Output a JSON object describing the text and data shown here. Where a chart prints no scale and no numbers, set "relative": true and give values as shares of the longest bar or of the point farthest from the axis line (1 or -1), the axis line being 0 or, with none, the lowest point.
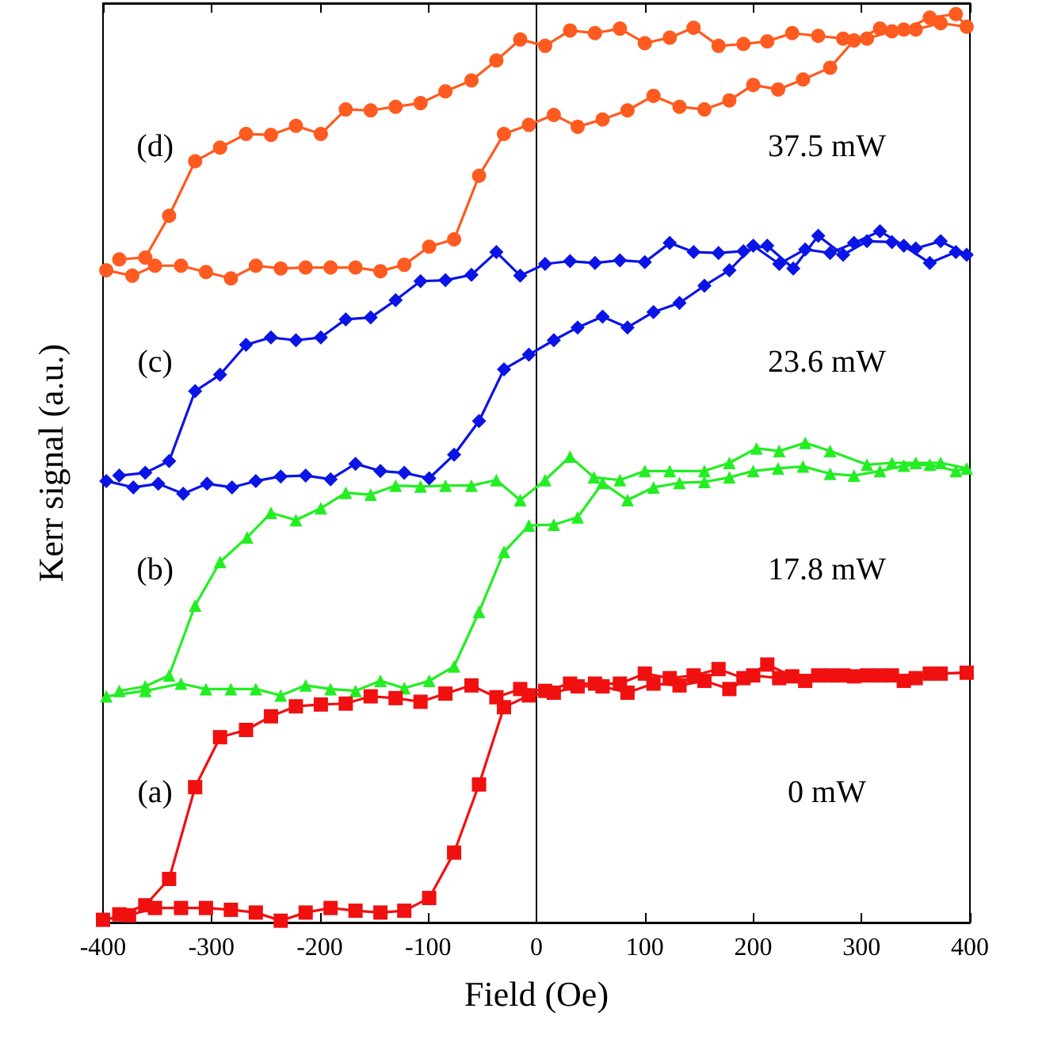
{
  "chart_data": {
    "type": "line",
    "relative": true,
    "xlabel": "Field (Oe)",
    "ylabel": "Kerr signal (a.u.)",
    "xlim": [
      -400,
      400
    ],
    "xticks": [
      -400,
      -300,
      -200,
      -100,
      0,
      100,
      200,
      300,
      400
    ],
    "grid": false,
    "line_style": "solid",
    "ref_lines": [
      {
        "axis": "x",
        "value": 0,
        "color": "#000000"
      }
    ],
    "annotations": [
      "(d)",
      "37.5 mW",
      "(c)",
      "23.6 mW",
      "(b)",
      "17.8 mW",
      "(a)",
      "0 mW"
    ],
    "series": [
      {
        "color": "#ff5a1f",
        "marker": "circle",
        "x": [
          -397,
          -373,
          -352,
          -328,
          -305,
          -282,
          -259,
          -236,
          -213,
          -190,
          -167,
          -144,
          -122,
          -99,
          -76,
          -53,
          -30,
          -7,
          16,
          38,
          61,
          84,
          108,
          132,
          155,
          178,
          200,
          223,
          246,
          271,
          293,
          317,
          339,
          363,
          387,
          397,
          373,
          350,
          328,
          305,
          283,
          260,
          236,
          213,
          191,
          168,
          145,
          123,
          100,
          77,
          54,
          31,
          8,
          -15,
          -37,
          -60,
          -84,
          -107,
          -130,
          -153,
          -176,
          -199,
          -222,
          -245,
          -268,
          -292,
          -315,
          -339,
          -361,
          -385
        ],
        "values": [
          0.718,
          0.712,
          0.723,
          0.723,
          0.716,
          0.709,
          0.723,
          0.72,
          0.721,
          0.721,
          0.721,
          0.717,
          0.724,
          0.744,
          0.752,
          0.822,
          0.868,
          0.878,
          0.889,
          0.876,
          0.884,
          0.894,
          0.91,
          0.898,
          0.895,
          0.905,
          0.922,
          0.917,
          0.928,
          0.941,
          0.971,
          0.984,
          0.983,
          0.996,
          1.0,
          0.986,
          0.99,
          0.983,
          0.981,
          0.973,
          0.973,
          0.976,
          0.979,
          0.97,
          0.967,
          0.965,
          0.985,
          0.974,
          0.968,
          0.984,
          0.979,
          0.982,
          0.965,
          0.972,
          0.949,
          0.927,
          0.915,
          0.902,
          0.898,
          0.894,
          0.895,
          0.868,
          0.877,
          0.867,
          0.868,
          0.853,
          0.838,
          0.778,
          0.732,
          0.73
        ]
      },
      {
        "color": "#0a14e6",
        "marker": "diamond",
        "x": [
          -397,
          -372,
          -349,
          -326,
          -304,
          -281,
          -259,
          -236,
          -213,
          -190,
          -167,
          -144,
          -122,
          -99,
          -76,
          -53,
          -30,
          -7,
          16,
          38,
          61,
          84,
          108,
          132,
          155,
          178,
          200,
          224,
          248,
          271,
          293,
          317,
          339,
          363,
          387,
          397,
          373,
          350,
          328,
          305,
          283,
          260,
          237,
          213,
          191,
          168,
          145,
          123,
          100,
          77,
          54,
          31,
          8,
          -15,
          -37,
          -60,
          -84,
          -107,
          -130,
          -153,
          -176,
          -199,
          -222,
          -245,
          -268,
          -292,
          -315,
          -339,
          -361,
          -385
        ],
        "values": [
          0.486,
          0.479,
          0.483,
          0.472,
          0.483,
          0.479,
          0.486,
          0.491,
          0.492,
          0.488,
          0.505,
          0.497,
          0.495,
          0.489,
          0.515,
          0.552,
          0.609,
          0.625,
          0.641,
          0.655,
          0.667,
          0.655,
          0.672,
          0.682,
          0.701,
          0.718,
          0.745,
          0.725,
          0.741,
          0.737,
          0.748,
          0.761,
          0.745,
          0.726,
          0.738,
          0.735,
          0.75,
          0.742,
          0.749,
          0.75,
          0.735,
          0.756,
          0.72,
          0.745,
          0.739,
          0.737,
          0.738,
          0.748,
          0.727,
          0.729,
          0.726,
          0.728,
          0.725,
          0.712,
          0.738,
          0.713,
          0.707,
          0.706,
          0.685,
          0.666,
          0.664,
          0.644,
          0.641,
          0.644,
          0.636,
          0.603,
          0.585,
          0.508,
          0.495,
          0.492
        ]
      },
      {
        "color": "#22ee22",
        "marker": "triangle",
        "x": [
          -397,
          -361,
          -328,
          -305,
          -282,
          -259,
          -236,
          -213,
          -190,
          -167,
          -144,
          -122,
          -99,
          -76,
          -53,
          -30,
          -7,
          16,
          38,
          61,
          84,
          108,
          132,
          155,
          178,
          200,
          223,
          246,
          271,
          293,
          317,
          339,
          363,
          387,
          397,
          373,
          350,
          328,
          305,
          271,
          248,
          224,
          203,
          178,
          155,
          123,
          100,
          77,
          53,
          31,
          8,
          -15,
          -37,
          -60,
          -84,
          -107,
          -130,
          -153,
          -176,
          -199,
          -222,
          -245,
          -267,
          -292,
          -315,
          -339,
          -361,
          -385
        ],
        "values": [
          0.249,
          0.255,
          0.263,
          0.257,
          0.257,
          0.257,
          0.25,
          0.261,
          0.257,
          0.255,
          0.266,
          0.258,
          0.266,
          0.282,
          0.342,
          0.408,
          0.437,
          0.438,
          0.446,
          0.484,
          0.465,
          0.479,
          0.484,
          0.485,
          0.49,
          0.497,
          0.5,
          0.502,
          0.494,
          0.492,
          0.497,
          0.503,
          0.504,
          0.497,
          0.5,
          0.506,
          0.506,
          0.506,
          0.504,
          0.519,
          0.528,
          0.519,
          0.522,
          0.506,
          0.497,
          0.497,
          0.497,
          0.487,
          0.49,
          0.513,
          0.487,
          0.465,
          0.487,
          0.481,
          0.481,
          0.48,
          0.481,
          0.471,
          0.473,
          0.456,
          0.443,
          0.451,
          0.424,
          0.397,
          0.349,
          0.272,
          0.26,
          0.255
        ]
      },
      {
        "color": "#f01010",
        "marker": "square",
        "x": [
          -400,
          -376,
          -352,
          -328,
          -305,
          -282,
          -259,
          -236,
          -213,
          -190,
          -167,
          -144,
          -122,
          -99,
          -76,
          -53,
          -30,
          -7,
          16,
          38,
          61,
          84,
          108,
          132,
          155,
          178,
          200,
          224,
          248,
          271,
          293,
          317,
          339,
          363,
          397,
          373,
          350,
          328,
          305,
          283,
          260,
          236,
          213,
          191,
          168,
          145,
          123,
          100,
          77,
          54,
          31,
          8,
          -15,
          -37,
          -60,
          -84,
          -107,
          -130,
          -153,
          -176,
          -199,
          -222,
          -245,
          -268,
          -292,
          -315,
          -339,
          -361,
          -385
        ],
        "values": [
          0.003,
          0.008,
          0.016,
          0.016,
          0.016,
          0.014,
          0.011,
          0.002,
          0.011,
          0.016,
          0.013,
          0.011,
          0.013,
          0.027,
          0.077,
          0.152,
          0.237,
          0.25,
          0.253,
          0.26,
          0.26,
          0.253,
          0.263,
          0.261,
          0.266,
          0.257,
          0.272,
          0.269,
          0.266,
          0.272,
          0.271,
          0.272,
          0.266,
          0.274,
          0.275,
          0.274,
          0.269,
          0.272,
          0.272,
          0.272,
          0.272,
          0.271,
          0.284,
          0.269,
          0.279,
          0.272,
          0.269,
          0.274,
          0.263,
          0.263,
          0.263,
          0.255,
          0.257,
          0.248,
          0.261,
          0.252,
          0.243,
          0.247,
          0.249,
          0.241,
          0.24,
          0.238,
          0.227,
          0.212,
          0.204,
          0.149,
          0.048,
          0.019,
          0.009
        ]
      }
    ]
  }
}
